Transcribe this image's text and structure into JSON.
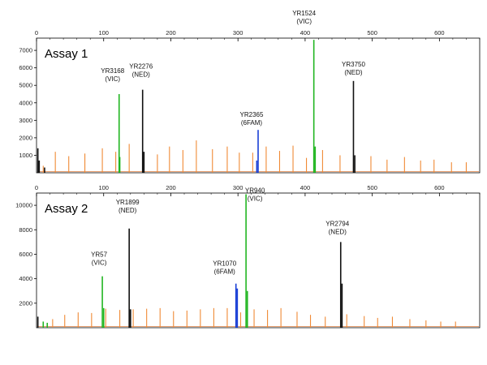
{
  "chart_data": [
    {
      "type": "line",
      "title": "Assay 1",
      "xlabel": "",
      "ylabel": "",
      "xlim": [
        0,
        660
      ],
      "ylim": [
        0,
        7700
      ],
      "x_ticks": [
        0,
        100,
        200,
        300,
        400,
        500,
        600
      ],
      "y_ticks": [
        1000,
        2000,
        3000,
        4000,
        5000,
        6000,
        7000
      ],
      "grid": false,
      "series": [
        {
          "color": "#1a3fd6",
          "peaks": [
            [
              330,
              2450
            ],
            [
              328,
              700
            ]
          ]
        },
        {
          "color": "#22b622",
          "peaks": [
            [
              123,
              4500
            ],
            [
              124,
              900
            ],
            [
              413,
              7600
            ],
            [
              415,
              1500
            ]
          ]
        },
        {
          "color": "#111111",
          "peaks": [
            [
              2,
              1400
            ],
            [
              4,
              700
            ],
            [
              12,
              300
            ],
            [
              158,
              4750
            ],
            [
              160,
              1200
            ],
            [
              472,
              5250
            ],
            [
              474,
              1000
            ]
          ]
        },
        {
          "color": "#f08a35",
          "peaks": [
            [
              10,
              400
            ],
            [
              28,
              1200
            ],
            [
              48,
              950
            ],
            [
              72,
              1100
            ],
            [
              98,
              1400
            ],
            [
              118,
              1200
            ],
            [
              138,
              1650
            ],
            [
              158,
              1300
            ],
            [
              180,
              1050
            ],
            [
              198,
              1500
            ],
            [
              218,
              1300
            ],
            [
              238,
              1850
            ],
            [
              262,
              1350
            ],
            [
              284,
              1500
            ],
            [
              302,
              1150
            ],
            [
              322,
              1150
            ],
            [
              342,
              1500
            ],
            [
              362,
              1250
            ],
            [
              382,
              1550
            ],
            [
              402,
              850
            ],
            [
              426,
              1300
            ],
            [
              452,
              1000
            ],
            [
              472,
              500
            ],
            [
              498,
              950
            ],
            [
              522,
              750
            ],
            [
              548,
              900
            ],
            [
              572,
              700
            ],
            [
              592,
              750
            ],
            [
              618,
              600
            ],
            [
              640,
              600
            ]
          ]
        }
      ],
      "peak_labels": [
        {
          "name": "YR3168",
          "dye": "(VIC)",
          "x": 123,
          "y": 4500
        },
        {
          "name": "YR2276",
          "dye": "(NED)",
          "x": 158,
          "y": 4750
        },
        {
          "name": "YR2365",
          "dye": "(6FAM)",
          "x": 330,
          "y": 2450
        },
        {
          "name": "YR1524",
          "dye": "(VIC)",
          "x": 413,
          "y": 7600
        },
        {
          "name": "YR3750",
          "dye": "(NED)",
          "x": 472,
          "y": 5250
        }
      ]
    },
    {
      "type": "line",
      "title": "Assay 2",
      "xlabel": "",
      "ylabel": "",
      "xlim": [
        0,
        660
      ],
      "ylim": [
        0,
        11000
      ],
      "x_ticks": [
        0,
        100,
        200,
        300,
        400,
        500,
        600
      ],
      "y_ticks": [
        2000,
        4000,
        6000,
        8000,
        10000
      ],
      "grid": false,
      "series": [
        {
          "color": "#1a3fd6",
          "peaks": [
            [
              297,
              3600
            ],
            [
              299,
              3200
            ]
          ]
        },
        {
          "color": "#22b622",
          "peaks": [
            [
              10,
              500
            ],
            [
              16,
              400
            ],
            [
              98,
              4200
            ],
            [
              100,
              1600
            ],
            [
              312,
              10900
            ],
            [
              314,
              3000
            ]
          ]
        },
        {
          "color": "#111111",
          "peaks": [
            [
              2,
              900
            ],
            [
              138,
              8100
            ],
            [
              140,
              1500
            ],
            [
              453,
              7000
            ],
            [
              455,
              3600
            ]
          ]
        },
        {
          "color": "#f08a35",
          "peaks": [
            [
              24,
              700
            ],
            [
              42,
              1050
            ],
            [
              62,
              1250
            ],
            [
              82,
              1200
            ],
            [
              103,
              1550
            ],
            [
              124,
              1450
            ],
            [
              144,
              1500
            ],
            [
              164,
              1550
            ],
            [
              184,
              1600
            ],
            [
              204,
              1350
            ],
            [
              224,
              1400
            ],
            [
              244,
              1500
            ],
            [
              264,
              1600
            ],
            [
              284,
              1600
            ],
            [
              304,
              1250
            ],
            [
              324,
              1500
            ],
            [
              344,
              1450
            ],
            [
              364,
              1600
            ],
            [
              388,
              1300
            ],
            [
              408,
              1050
            ],
            [
              430,
              900
            ],
            [
              462,
              1100
            ],
            [
              488,
              950
            ],
            [
              508,
              800
            ],
            [
              530,
              900
            ],
            [
              556,
              700
            ],
            [
              580,
              600
            ],
            [
              602,
              500
            ],
            [
              624,
              500
            ]
          ]
        }
      ],
      "peak_labels": [
        {
          "name": "YR57",
          "dye": "(VIC)",
          "x": 98,
          "y": 4200
        },
        {
          "name": "YR1899",
          "dye": "(NED)",
          "x": 138,
          "y": 8100
        },
        {
          "name": "YR1070",
          "dye": "(6FAM)",
          "x": 297,
          "y": 3600
        },
        {
          "name": "YR940",
          "dye": "(VIC)",
          "x": 312,
          "y": 10900
        },
        {
          "name": "YR2794",
          "dye": "(NED)",
          "x": 453,
          "y": 7000
        }
      ]
    }
  ]
}
